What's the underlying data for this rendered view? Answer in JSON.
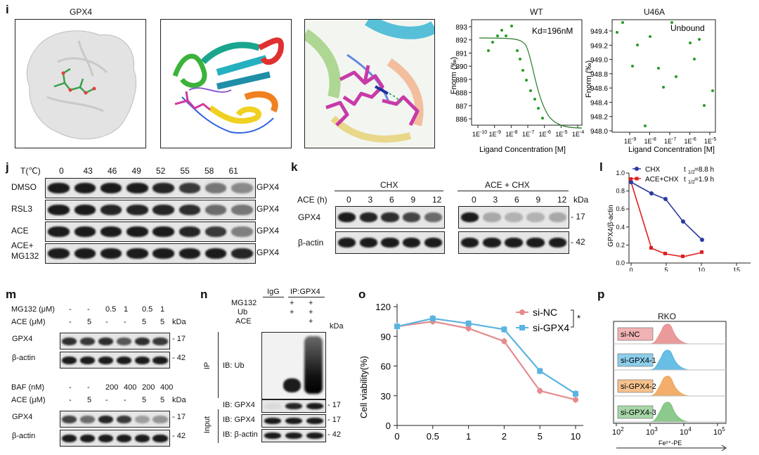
{
  "panel_i": {
    "label": "i",
    "title": "GPX4",
    "wt": {
      "title": "WT",
      "kd": "Kd=196nM",
      "xlabel": "Ligand Concentration [M]",
      "ylabel": "Fnorm (‰)",
      "yticks": [
        "893",
        "892",
        "891",
        "890",
        "889",
        "888",
        "887",
        "886"
      ],
      "xticks": [
        "1E-10",
        "1E-9",
        "1E-8",
        "1E-7",
        "1E-6",
        "1E-5",
        "1E-4"
      ]
    },
    "u46a": {
      "title": "U46A",
      "note": "Unbound",
      "xlabel": "Ligand Concentration [M]",
      "ylabel": "Fnorm (‰)",
      "yticks": [
        "949.4",
        "949.2",
        "949.0",
        "948.8",
        "948.6",
        "948.4",
        "948.2",
        "948.0"
      ],
      "xticks": [
        "1E-9",
        "1E-8",
        "1E-7",
        "1E-6",
        "1E-5"
      ]
    }
  },
  "panel_j": {
    "label": "j",
    "temp_label": "T(℃)",
    "temps": [
      "0",
      "43",
      "46",
      "49",
      "52",
      "55",
      "58",
      "61"
    ],
    "rows": [
      {
        "name": "DMSO",
        "protein": "GPX4"
      },
      {
        "name": "RSL3",
        "protein": "GPX4"
      },
      {
        "name": "ACE",
        "protein": "GPX4"
      },
      {
        "name": "ACE+\nMG132",
        "protein": "GPX4"
      }
    ]
  },
  "panel_k": {
    "label": "k",
    "group1": "CHX",
    "group2": "ACE + CHX",
    "time_label": "ACE (h)",
    "times": [
      "0",
      "3",
      "6",
      "9",
      "12"
    ],
    "kda": "kDa",
    "rows": [
      {
        "name": "GPX4",
        "kda": "17"
      },
      {
        "name": "β-actin",
        "kda": "42"
      }
    ]
  },
  "panel_l": {
    "label": "l",
    "legend": [
      {
        "name": "CHX",
        "t_half": "=8.8 h"
      },
      {
        "name": "ACE+CHX",
        "t_half": "=1.9 h"
      }
    ],
    "t_half_label": "t",
    "t_half_sub": "1/2",
    "ylabel": "GPX4/β-actin",
    "yticks": [
      "1.0",
      "0.8",
      "0.6",
      "0.4",
      "0.2",
      "0.0"
    ],
    "xticks": [
      "0",
      "5",
      "10",
      "15"
    ]
  },
  "panel_m": {
    "label": "m",
    "top": {
      "treat1": "MG132 (μM)",
      "treat1_vals": [
        "-",
        "-",
        "0.5",
        "1",
        "0.5",
        "1"
      ],
      "treat2": "ACE (μM)",
      "treat2_vals": [
        "-",
        "5",
        "-",
        "-",
        "5",
        "5"
      ],
      "kda": "kDa",
      "rows": [
        {
          "name": "GPX4",
          "kda": "17"
        },
        {
          "name": "β-actin",
          "kda": "42"
        }
      ]
    },
    "bottom": {
      "treat1": "BAF (nM)",
      "treat1_vals": [
        "-",
        "-",
        "200",
        "400",
        "200",
        "400"
      ],
      "treat2": "ACE (μM)",
      "treat2_vals": [
        "-",
        "5",
        "-",
        "-",
        "5",
        "5"
      ],
      "kda": "kDa",
      "rows": [
        {
          "name": "GPX4",
          "kda": "17"
        },
        {
          "name": "β-actin",
          "kda": "42"
        }
      ]
    }
  },
  "panel_n": {
    "label": "n",
    "igg": "IgG",
    "ip": "IP:GPX4",
    "treatments": [
      {
        "name": "MG132",
        "vals": [
          "",
          "+",
          "+"
        ]
      },
      {
        "name": "Ub",
        "vals": [
          "",
          "+",
          "+"
        ]
      },
      {
        "name": "ACE",
        "vals": [
          "",
          "",
          "+"
        ]
      }
    ],
    "kda": "kDa",
    "ip_side": "IP",
    "input_side": "Input",
    "rows": [
      {
        "name": "IB: Ub",
        "kda": ""
      },
      {
        "name": "IB: GPX4",
        "kda": "17"
      },
      {
        "name": "IB: GPX4",
        "kda": "17"
      },
      {
        "name": "IB: β-actin",
        "kda": "42"
      }
    ]
  },
  "panel_o": {
    "label": "o",
    "ylabel": "Cell viability(%)",
    "yticks": [
      "120",
      "90",
      "60",
      "30",
      "0"
    ],
    "sig": "*",
    "chart_data": {
      "type": "line",
      "categories": [
        "0",
        "0.5",
        "1",
        "2",
        "5",
        "10"
      ],
      "series": [
        {
          "name": "si-NC",
          "values": [
            100,
            105,
            98,
            85,
            35,
            26
          ],
          "color": "#e58b8f"
        },
        {
          "name": "si-GPX4",
          "values": [
            100,
            108,
            103,
            97,
            55,
            32
          ],
          "color": "#5ab4e0"
        }
      ],
      "ylim": [
        0,
        120
      ]
    }
  },
  "panel_p": {
    "label": "p",
    "title": "RKO",
    "samples": [
      {
        "name": "si-NC",
        "color": "#e8888b"
      },
      {
        "name": "si-GPX4-1",
        "color": "#4fb3e0"
      },
      {
        "name": "si-GPX4-2",
        "color": "#f0a050"
      },
      {
        "name": "si-GPX4-3",
        "color": "#78c078"
      }
    ],
    "xticks": [
      "10",
      "10",
      "10",
      "10"
    ],
    "xtick_exp": [
      "2",
      "3",
      "4",
      "5"
    ],
    "xlabel": "Fe²⁺-PE"
  }
}
